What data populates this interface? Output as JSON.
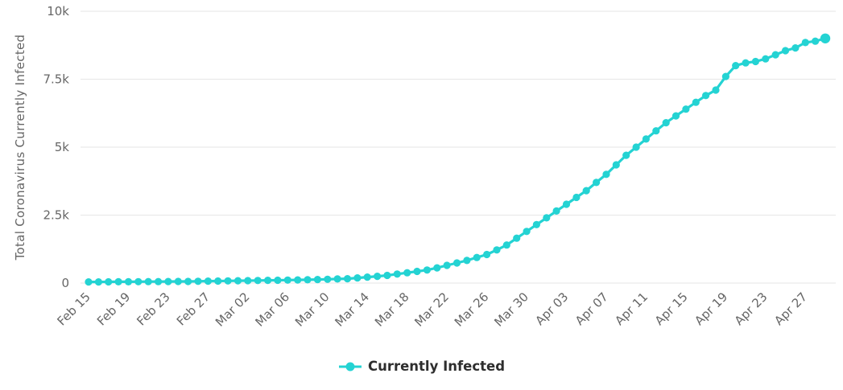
{
  "chart_data": {
    "type": "line",
    "title": "",
    "xlabel": "",
    "ylabel": "Total Coronavirus Currently Infected",
    "series_name": "Currently Infected",
    "ylim": [
      0,
      10000
    ],
    "grid": "horizontal",
    "legend_position": "bottom-center",
    "yticks": [
      {
        "value": 0,
        "label": "0"
      },
      {
        "value": 2500,
        "label": "2.5k"
      },
      {
        "value": 5000,
        "label": "5k"
      },
      {
        "value": 7500,
        "label": "7.5k"
      },
      {
        "value": 10000,
        "label": "10k"
      }
    ],
    "xtick_every": 4,
    "xtick_labels": [
      "Feb 15",
      "Feb 19",
      "Feb 23",
      "Feb 27",
      "Mar 02",
      "Mar 06",
      "Mar 10",
      "Mar 14",
      "Mar 18",
      "Mar 22",
      "Mar 26",
      "Mar 30",
      "Apr 03",
      "Apr 07",
      "Apr 11",
      "Apr 15",
      "Apr 19",
      "Apr 23",
      "Apr 27"
    ],
    "x": [
      "Feb 15",
      "Feb 16",
      "Feb 17",
      "Feb 18",
      "Feb 19",
      "Feb 20",
      "Feb 21",
      "Feb 22",
      "Feb 23",
      "Feb 24",
      "Feb 25",
      "Feb 26",
      "Feb 27",
      "Feb 28",
      "Feb 29",
      "Mar 01",
      "Mar 02",
      "Mar 03",
      "Mar 04",
      "Mar 05",
      "Mar 06",
      "Mar 07",
      "Mar 08",
      "Mar 09",
      "Mar 10",
      "Mar 11",
      "Mar 12",
      "Mar 13",
      "Mar 14",
      "Mar 15",
      "Mar 16",
      "Mar 17",
      "Mar 18",
      "Mar 19",
      "Mar 20",
      "Mar 21",
      "Mar 22",
      "Mar 23",
      "Mar 24",
      "Mar 25",
      "Mar 26",
      "Mar 27",
      "Mar 28",
      "Mar 29",
      "Mar 30",
      "Mar 31",
      "Apr 01",
      "Apr 02",
      "Apr 03",
      "Apr 04",
      "Apr 05",
      "Apr 06",
      "Apr 07",
      "Apr 08",
      "Apr 09",
      "Apr 10",
      "Apr 11",
      "Apr 12",
      "Apr 13",
      "Apr 14",
      "Apr 15",
      "Apr 16",
      "Apr 17",
      "Apr 18",
      "Apr 19",
      "Apr 20",
      "Apr 21",
      "Apr 22",
      "Apr 23",
      "Apr 24",
      "Apr 25",
      "Apr 26",
      "Apr 27",
      "Apr 28",
      "Apr 29"
    ],
    "values": [
      40,
      42,
      44,
      46,
      48,
      50,
      52,
      54,
      56,
      58,
      60,
      65,
      70,
      75,
      80,
      85,
      90,
      95,
      100,
      105,
      110,
      115,
      120,
      130,
      140,
      150,
      160,
      190,
      220,
      250,
      280,
      330,
      380,
      430,
      480,
      560,
      650,
      740,
      830,
      940,
      1050,
      1220,
      1400,
      1650,
      1900,
      2150,
      2400,
      2650,
      2900,
      3150,
      3400,
      3700,
      4000,
      4350,
      4700,
      5000,
      5300,
      5600,
      5900,
      6150,
      6400,
      6650,
      6900,
      7100,
      7600,
      8000,
      8100,
      8150,
      8250,
      8400,
      8550,
      8650,
      8850,
      8900,
      9000
    ],
    "colors": {
      "series": "#24d3d3",
      "grid": "#e6e6e6",
      "axis_text": "#666666",
      "legend_text": "#2e2e2e",
      "background": "#ffffff"
    }
  },
  "legend": {
    "items": [
      {
        "label": "Currently Infected",
        "color": "#24d3d3"
      }
    ]
  }
}
